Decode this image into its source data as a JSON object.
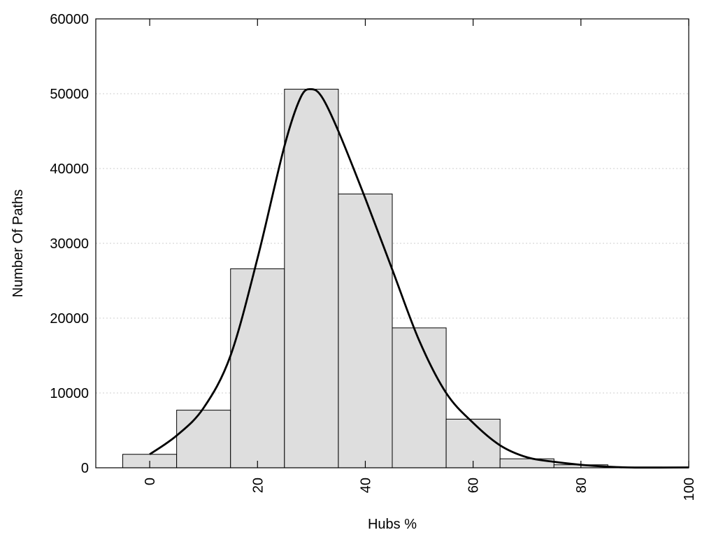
{
  "chart_data": {
    "type": "bar",
    "title": "",
    "xlabel": "Hubs %",
    "ylabel": "Number Of Paths",
    "xlim": [
      -10,
      100
    ],
    "ylim": [
      0,
      60000
    ],
    "x_ticks": [
      0,
      20,
      40,
      60,
      80,
      100
    ],
    "y_ticks": [
      0,
      10000,
      20000,
      30000,
      40000,
      50000,
      60000
    ],
    "grid": "horizontal dotted",
    "bin_width": 10,
    "bar_color": "#dedede",
    "bins": [
      {
        "center": 0,
        "value": 1800
      },
      {
        "center": 10,
        "value": 7700
      },
      {
        "center": 20,
        "value": 26600
      },
      {
        "center": 30,
        "value": 50600
      },
      {
        "center": 40,
        "value": 36600
      },
      {
        "center": 50,
        "value": 18700
      },
      {
        "center": 60,
        "value": 6500
      },
      {
        "center": 70,
        "value": 1200
      },
      {
        "center": 80,
        "value": 400
      },
      {
        "center": 90,
        "value": 100
      },
      {
        "center": 100,
        "value": 50
      }
    ],
    "density_curve": [
      {
        "x": 0,
        "y": 1800
      },
      {
        "x": 5,
        "y": 4300
      },
      {
        "x": 10,
        "y": 8000
      },
      {
        "x": 15,
        "y": 15000
      },
      {
        "x": 20,
        "y": 28000
      },
      {
        "x": 25,
        "y": 43000
      },
      {
        "x": 28,
        "y": 49500
      },
      {
        "x": 30,
        "y": 50600
      },
      {
        "x": 32,
        "y": 49500
      },
      {
        "x": 35,
        "y": 45000
      },
      {
        "x": 40,
        "y": 36000
      },
      {
        "x": 45,
        "y": 26500
      },
      {
        "x": 50,
        "y": 17000
      },
      {
        "x": 55,
        "y": 10000
      },
      {
        "x": 60,
        "y": 6000
      },
      {
        "x": 65,
        "y": 3000
      },
      {
        "x": 70,
        "y": 1400
      },
      {
        "x": 75,
        "y": 800
      },
      {
        "x": 80,
        "y": 400
      },
      {
        "x": 85,
        "y": 150
      },
      {
        "x": 90,
        "y": 30
      },
      {
        "x": 100,
        "y": 50
      }
    ]
  }
}
